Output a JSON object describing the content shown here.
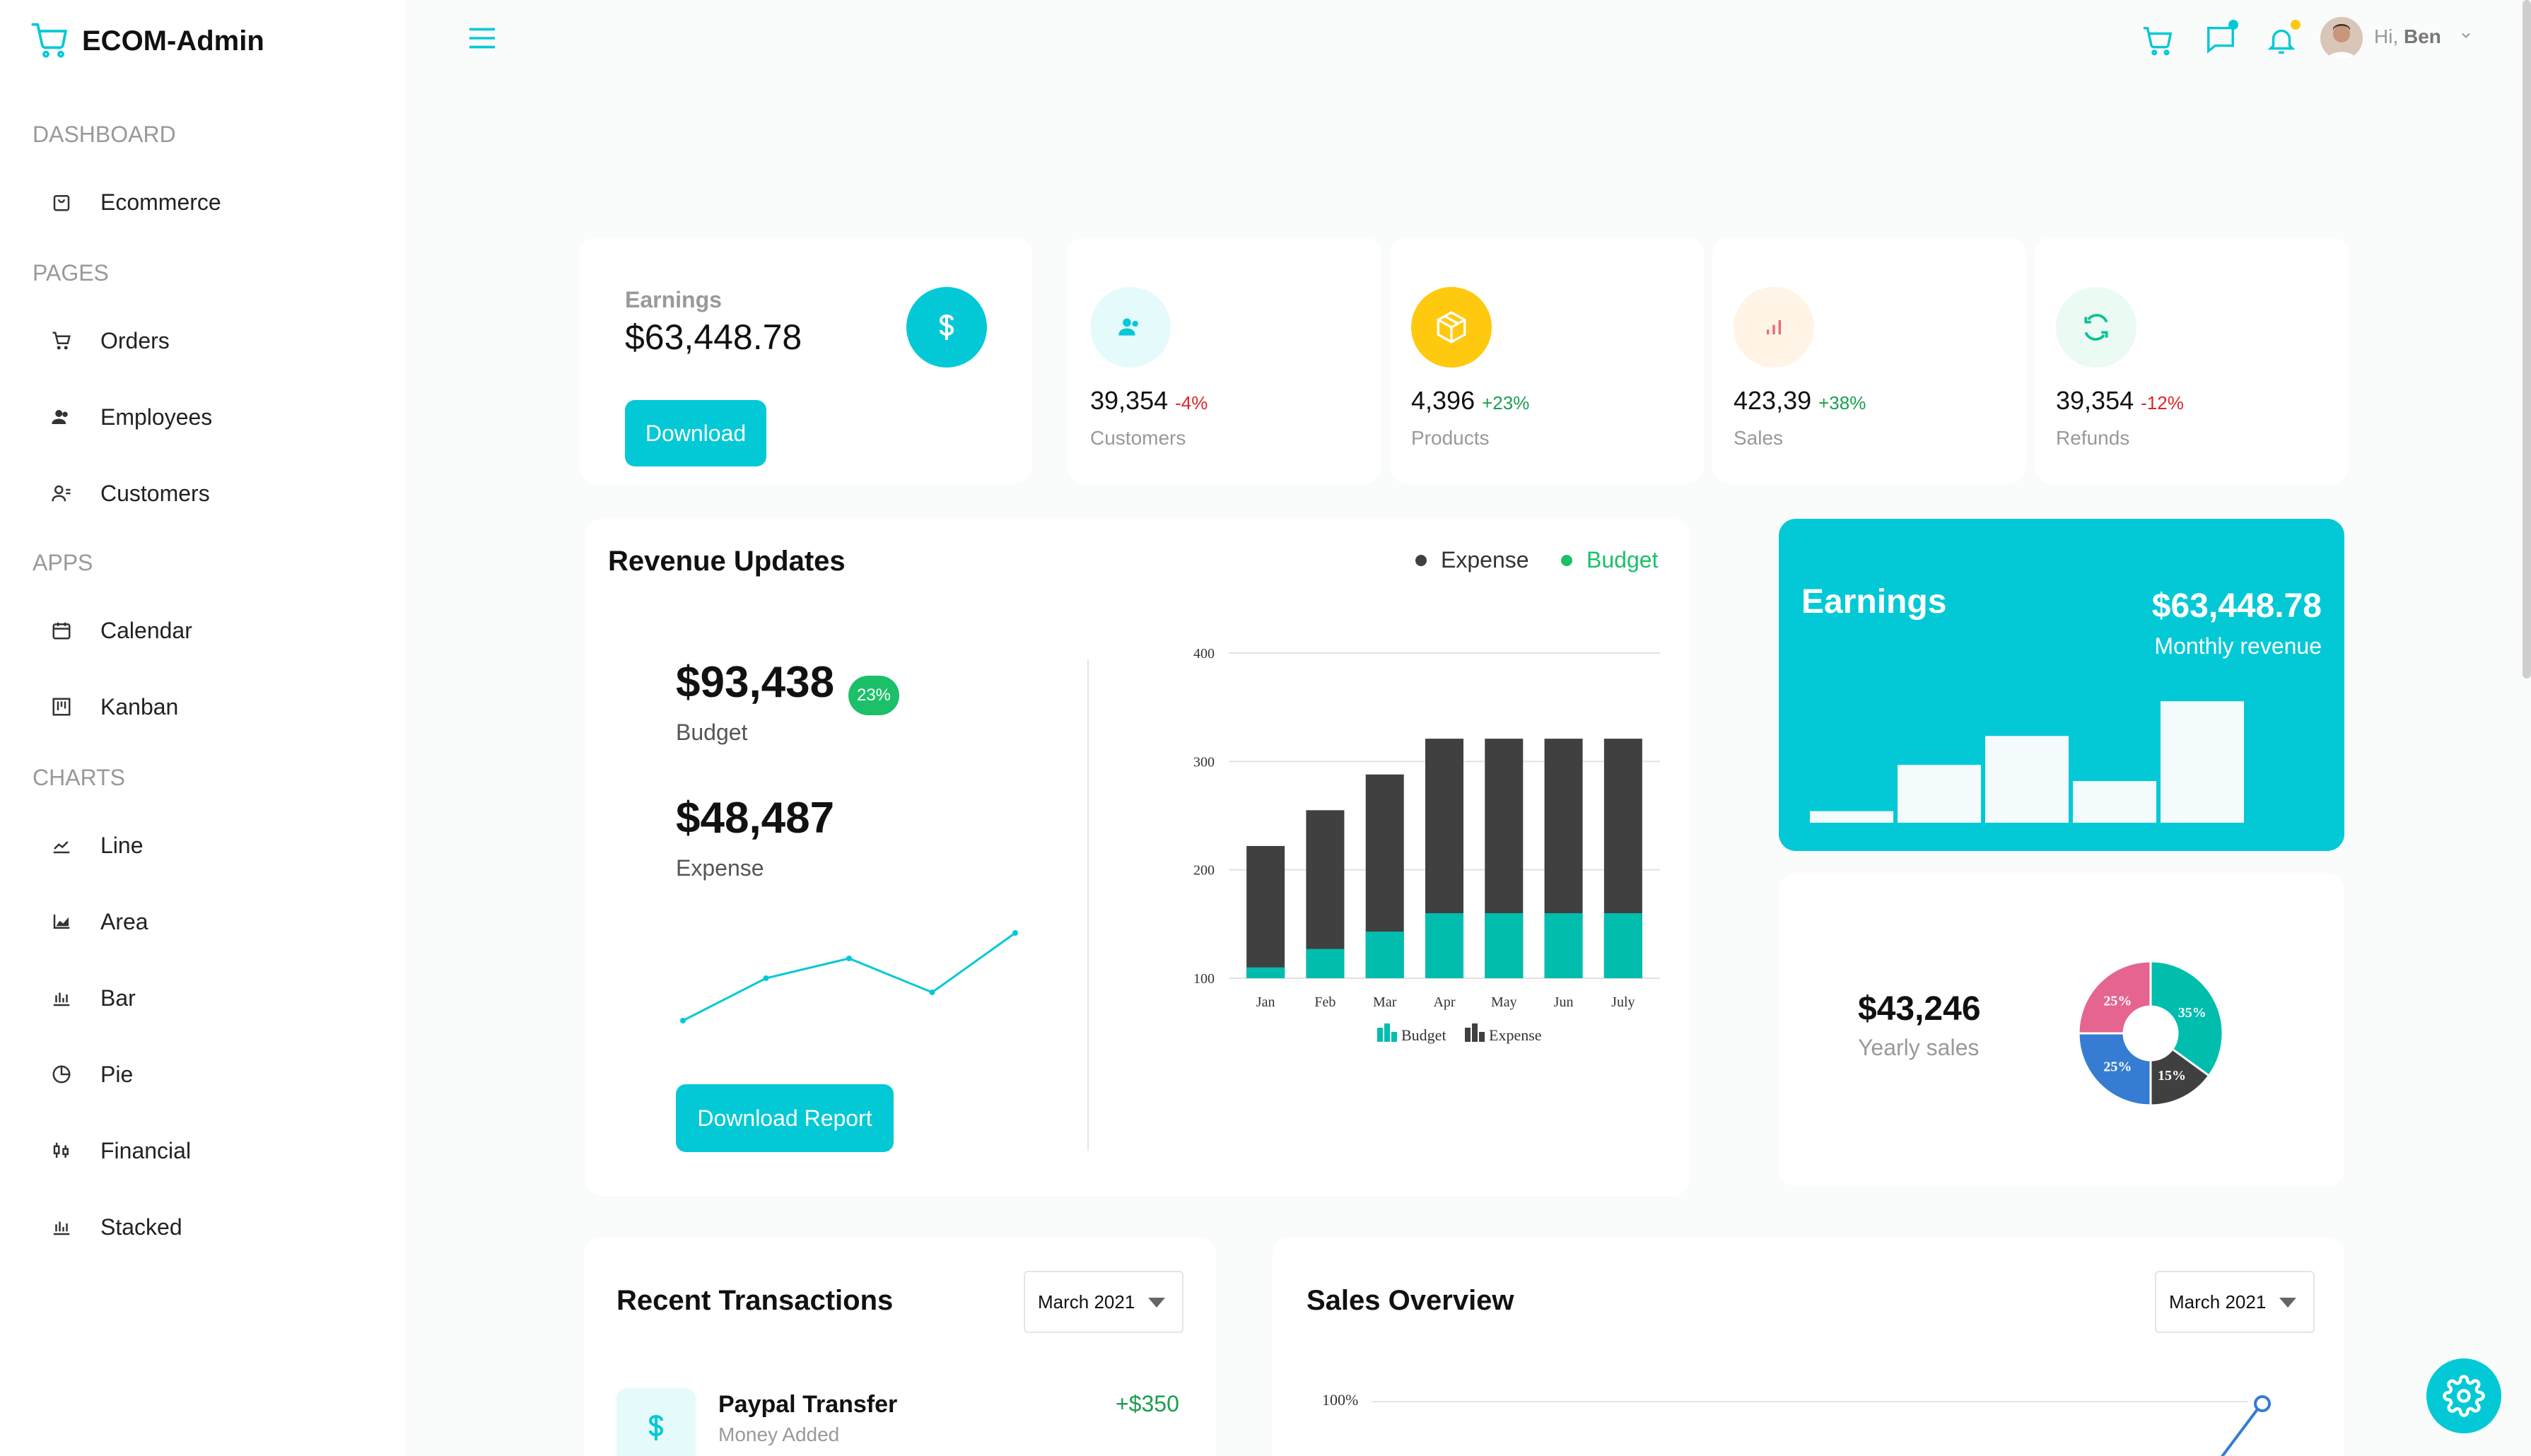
{
  "brand": {
    "title": "ECOM-Admin"
  },
  "sidebar": {
    "sections": [
      {
        "title": "DASHBOARD",
        "items": [
          {
            "label": "Ecommerce",
            "icon": "shopping-bag-icon"
          }
        ]
      },
      {
        "title": "PAGES",
        "items": [
          {
            "label": "Orders",
            "icon": "cart-icon"
          },
          {
            "label": "Employees",
            "icon": "people-icon"
          },
          {
            "label": "Customers",
            "icon": "customers-icon"
          }
        ]
      },
      {
        "title": "APPS",
        "items": [
          {
            "label": "Calendar",
            "icon": "calendar-icon"
          },
          {
            "label": "Kanban",
            "icon": "kanban-icon"
          }
        ]
      },
      {
        "title": "CHARTS",
        "items": [
          {
            "label": "Line",
            "icon": "line-chart-icon"
          },
          {
            "label": "Area",
            "icon": "area-chart-icon"
          },
          {
            "label": "Bar",
            "icon": "bar-chart-icon"
          },
          {
            "label": "Pie",
            "icon": "pie-chart-icon"
          },
          {
            "label": "Financial",
            "icon": "financial-icon"
          },
          {
            "label": "Stacked",
            "icon": "stacked-chart-icon"
          }
        ]
      }
    ]
  },
  "header": {
    "greeting": "Hi,",
    "user": "Ben"
  },
  "colors": {
    "accent": "#03c9d7",
    "up": "#1a9e4f",
    "down": "#e02424",
    "dark": "#404041",
    "teal": "#00bdae"
  },
  "earnings_card": {
    "label": "Earnings",
    "value": "$63,448.78",
    "button": "Download"
  },
  "stats": [
    {
      "value": "39,354",
      "change": "-4%",
      "trend": "down",
      "label": "Customers",
      "icon": "customers-icon",
      "bg": "#e5fafb",
      "fg": "#03c9d7"
    },
    {
      "value": "4,396",
      "change": "+23%",
      "trend": "up",
      "label": "Products",
      "icon": "box-icon",
      "bg": "#fec90f",
      "fg": "#ffffff"
    },
    {
      "value": "423,39",
      "change": "+38%",
      "trend": "up",
      "label": "Sales",
      "icon": "bar-chart-icon",
      "bg": "#fff4e5",
      "fg": "#e46a76"
    },
    {
      "value": "39,354",
      "change": "-12%",
      "trend": "down",
      "label": "Refunds",
      "icon": "refresh-icon",
      "bg": "#ebfaf2",
      "fg": "#00c292"
    }
  ],
  "revenue": {
    "title": "Revenue Updates",
    "legend": {
      "expense": "Expense",
      "budget": "Budget"
    },
    "budget_value": "$93,438",
    "budget_badge": "23%",
    "budget_label": "Budget",
    "expense_value": "$48,487",
    "expense_label": "Expense",
    "button": "Download Report"
  },
  "chart_data": [
    {
      "type": "bar",
      "categories": [
        "Jan",
        "Feb",
        "Mar",
        "Apr",
        "May",
        "Jun",
        "July"
      ],
      "series": [
        {
          "name": "Budget",
          "values": [
            110,
            127,
            143,
            160,
            160,
            160,
            160
          ]
        },
        {
          "name": "Expense",
          "values": [
            222,
            255,
            288,
            321,
            321,
            321,
            321
          ]
        }
      ],
      "ylim": [
        100,
        400
      ],
      "yticks": [
        100,
        200,
        300,
        400
      ],
      "stacked": "overlay",
      "legend": [
        "Budget",
        "Expense"
      ]
    },
    {
      "type": "line",
      "values": [
        2,
        5,
        6.4,
        4,
        8.2
      ]
    },
    {
      "type": "bar",
      "values": [
        1,
        5,
        7.5,
        3.6,
        10.5
      ]
    },
    {
      "type": "pie",
      "slices": [
        {
          "label": "35%",
          "value": 35,
          "color": "#00bdae"
        },
        {
          "label": "15%",
          "value": 15,
          "color": "#404041"
        },
        {
          "label": "25%",
          "value": 25,
          "color": "#357cd2"
        },
        {
          "label": "25%",
          "value": 25,
          "color": "#e56590"
        }
      ]
    }
  ],
  "earnings_banner": {
    "title": "Earnings",
    "value": "$63,448.78",
    "sub": "Monthly revenue"
  },
  "yearly": {
    "value": "$43,246",
    "label": "Yearly sales"
  },
  "transactions": {
    "title": "Recent Transactions",
    "dropdown": "March 2021",
    "items": [
      {
        "title": "Paypal Transfer",
        "sub": "Money Added",
        "amount": "+$350"
      }
    ]
  },
  "sales_overview": {
    "title": "Sales Overview",
    "dropdown": "March 2021",
    "tick": "100%"
  }
}
